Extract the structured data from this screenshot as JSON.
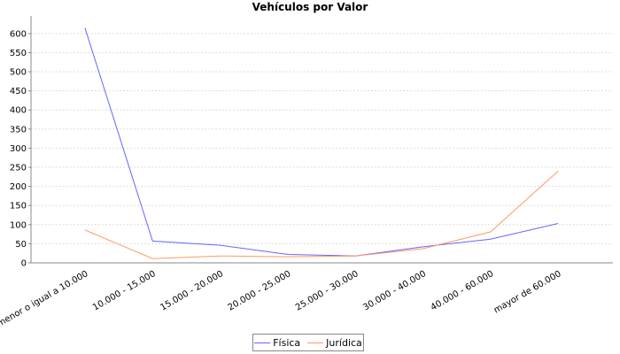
{
  "chart_data": {
    "type": "line",
    "title": "Vehículos por Valor",
    "xlabel": "",
    "ylabel": "",
    "categories": [
      "menor o igual a 10.000",
      "10.000 - 15.000",
      "15.000 - 20.000",
      "20.000 - 25.000",
      "25.000 - 30.000",
      "30.000 - 40.000",
      "40.000 - 60.000",
      "mayor de 60.000"
    ],
    "series": [
      {
        "name": "Física",
        "color": "#6666ff",
        "values": [
          614,
          57,
          46,
          22,
          18,
          42,
          62,
          103
        ]
      },
      {
        "name": "Jurídica",
        "color": "#ff9966",
        "values": [
          86,
          11,
          18,
          16,
          18,
          37,
          81,
          240
        ]
      }
    ],
    "ylim": [
      0,
      646
    ],
    "yticks": [
      0,
      50,
      100,
      150,
      200,
      250,
      300,
      350,
      400,
      450,
      500,
      550,
      600
    ],
    "grid": true,
    "legend": "bottom"
  }
}
